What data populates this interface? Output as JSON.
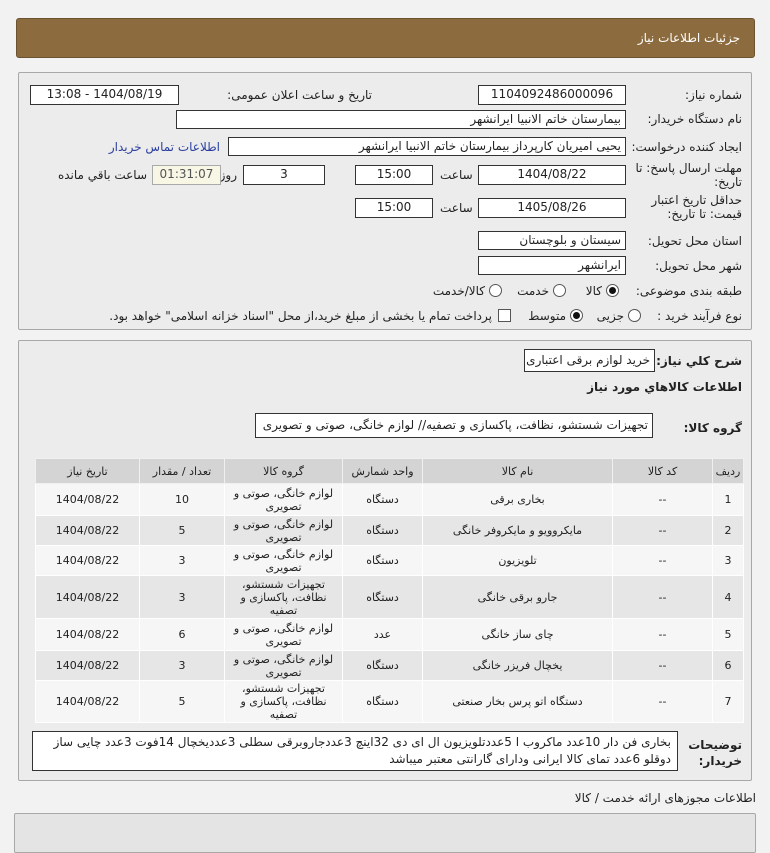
{
  "header": {
    "title": "جزئیات اطلاعات نیاز"
  },
  "form": {
    "need_number_label": "شماره نیاز:",
    "need_number": "1104092486000096",
    "announce_label": "تاریخ و ساعت اعلان عمومی:",
    "announce_value": "1404/08/19 - 13:08",
    "buyer_label": "نام دستگاه خریدار:",
    "buyer": "بیمارستان خاتم الانبیا ایرانشهر",
    "creator_label": "ایجاد کننده درخواست:",
    "creator": "یحیی امیریان کارپرداز بیمارستان خاتم الانبیا ایرانشهر",
    "contact_link": "اطلاعات تماس خریدار",
    "deadline_label": "مهلت ارسال پاسخ: تا تاریخ:",
    "deadline_date": "1404/08/22",
    "time_label": "ساعت",
    "deadline_time": "15:00",
    "days": "3",
    "days_label": "روز و",
    "remaining": "01:31:07",
    "remaining_label": "ساعت باقي مانده",
    "validity_label": "حداقل تاریخ اعتبار قیمت: تا تاریخ:",
    "validity_date": "1405/08/26",
    "validity_time": "15:00",
    "province_label": "استان محل تحویل:",
    "province": "سیستان و بلوچستان",
    "city_label": "شهر محل تحویل:",
    "city": "ایرانشهر",
    "category_label": "طبقه بندی موضوعی:",
    "category_options": [
      "کالا",
      "خدمت",
      "کالا/خدمت"
    ],
    "category_selected": "کالا",
    "purchase_label": "نوع فرآیند خرید :",
    "purchase_options": [
      "جزیی",
      "متوسط"
    ],
    "purchase_selected": "متوسط",
    "payment_text": "پرداخت تمام یا بخشی از مبلغ خرید،از محل \"اسناد خزانه اسلامی\" خواهد بود."
  },
  "summary": {
    "label": "شرح کلي نیاز:",
    "value": "خرید لوازم برقی اعتباری",
    "items_title": "اطلاعات کالاهاي مورد نیاز",
    "group_label": "گروه کالا:",
    "group_value": "تجهیزات شستشو، نظافت، پاکسازی و تصفیه// لوازم خانگی، صوتی و تصویری"
  },
  "table": {
    "headers": [
      "ردیف",
      "کد کالا",
      "نام کالا",
      "واحد شمارش",
      "گروه کالا",
      "تعداد / مقدار",
      "تاریخ نیاز"
    ],
    "rows": [
      [
        "1",
        "--",
        "بخاری برقی",
        "دستگاه",
        "لوازم خانگی، صوتی و تصویری",
        "10",
        "1404/08/22"
      ],
      [
        "2",
        "--",
        "مایکروویو و مایکروفر خانگی",
        "دستگاه",
        "لوازم خانگی، صوتی و تصویری",
        "5",
        "1404/08/22"
      ],
      [
        "3",
        "--",
        "تلویزیون",
        "دستگاه",
        "لوازم خانگی، صوتی و تصویری",
        "3",
        "1404/08/22"
      ],
      [
        "4",
        "--",
        "جارو برقی خانگی",
        "دستگاه",
        "تجهیزات شستشو، نظافت، پاکسازی و تصفیه",
        "3",
        "1404/08/22"
      ],
      [
        "5",
        "--",
        "چای ساز خانگی",
        "عدد",
        "لوازم خانگی، صوتی و تصویری",
        "6",
        "1404/08/22"
      ],
      [
        "6",
        "--",
        "یخچال فریزر خانگی",
        "دستگاه",
        "لوازم خانگی، صوتی و تصویری",
        "3",
        "1404/08/22"
      ],
      [
        "7",
        "--",
        "دستگاه اتو پرس بخار صنعتی",
        "دستگاه",
        "تجهیزات شستشو، نظافت، پاکسازی و تصفیه",
        "5",
        "1404/08/22"
      ]
    ]
  },
  "notes": {
    "label": "توضیحات خریدار:",
    "value": "بخاری فن دار 10عدد ماکروب ا 5عددتلویزیون ال ای دی 32اینچ 3عددجاروبرقی سطلی 3عددیخچال 14فوت 3عدد چایی ساز دوقلو 6عدد تمای کالا ایرانی ودارای گارانتی معتبر میباشد"
  },
  "licenses": {
    "title": "اطلاعات مجوزهای ارائه خدمت / کالا"
  }
}
